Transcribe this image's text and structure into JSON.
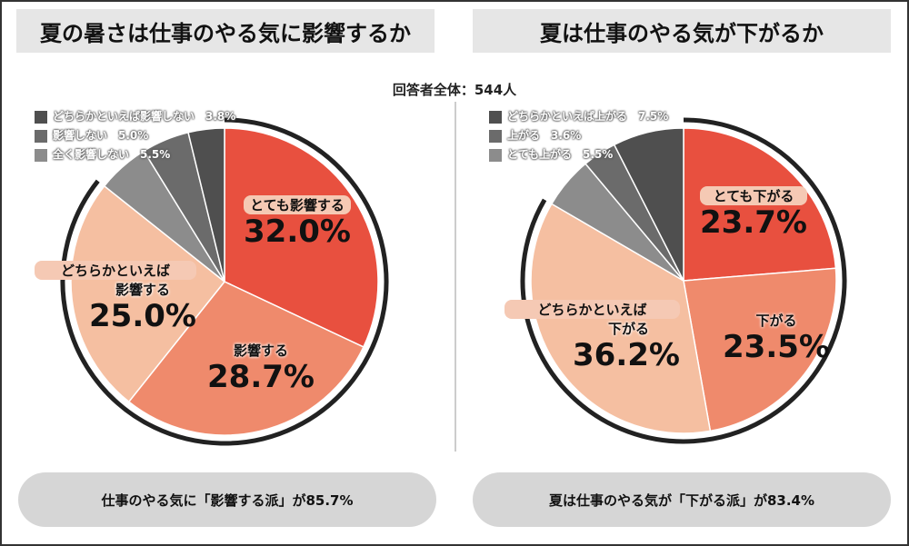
{
  "respondents": "回答者全体：544人",
  "chart_data": [
    {
      "type": "pie",
      "title": "夏の暑さは仕事のやる気に影響するか",
      "slices": [
        {
          "label": "とても影響する",
          "value": 32.0,
          "color": "#e8503f"
        },
        {
          "label": "影響する",
          "value": 28.7,
          "color": "#ef8a6c"
        },
        {
          "label": "どちらかといえば影響する",
          "value": 25.0,
          "color": "#f5bfa1"
        },
        {
          "label": "全く影響しない",
          "value": 5.5,
          "color": "#8c8c8c"
        },
        {
          "label": "影響しない",
          "value": 5.0,
          "color": "#6b6b6b"
        },
        {
          "label": "どちらかといえば影響しない",
          "value": 3.8,
          "color": "#4f4f4f"
        }
      ],
      "legend": [
        {
          "text": "どちらかといえば影響しない　3.8%",
          "color": "#4f4f4f"
        },
        {
          "text": "影響しない　5.0%",
          "color": "#6b6b6b"
        },
        {
          "text": "全く影響しない　5.5%",
          "color": "#8c8c8c"
        }
      ],
      "labels": [
        {
          "name": "とても影響する",
          "value": "32.0%"
        },
        {
          "name": "影響する",
          "value": "28.7%"
        },
        {
          "name1": "どちらかといえば",
          "name2": "影響する",
          "value": "25.0%"
        }
      ],
      "summary": "仕事のやる気に「影響する派」が85.7%",
      "summary_value": 85.7
    },
    {
      "type": "pie",
      "title": "夏は仕事のやる気が下がるか",
      "slices": [
        {
          "label": "とても下がる",
          "value": 23.7,
          "color": "#e8503f"
        },
        {
          "label": "下がる",
          "value": 23.5,
          "color": "#ef8a6c"
        },
        {
          "label": "どちらかといえば下がる",
          "value": 36.2,
          "color": "#f5bfa1"
        },
        {
          "label": "とても上がる",
          "value": 5.5,
          "color": "#8c8c8c"
        },
        {
          "label": "上がる",
          "value": 3.6,
          "color": "#6b6b6b"
        },
        {
          "label": "どちらかといえば上がる",
          "value": 7.5,
          "color": "#4f4f4f"
        }
      ],
      "legend": [
        {
          "text": "どちらかといえば上がる　7.5%",
          "color": "#4f4f4f"
        },
        {
          "text": "上がる　3.6%",
          "color": "#6b6b6b"
        },
        {
          "text": "とても上がる　5.5%",
          "color": "#8c8c8c"
        }
      ],
      "labels": [
        {
          "name": "とても下がる",
          "value": "23.7%"
        },
        {
          "name": "下がる",
          "value": "23.5%"
        },
        {
          "name1": "どちらかといえば",
          "name2": "下がる",
          "value": "36.2%"
        }
      ],
      "summary": "夏は仕事のやる気が「下がる派」が83.4%",
      "summary_value": 83.4
    }
  ]
}
